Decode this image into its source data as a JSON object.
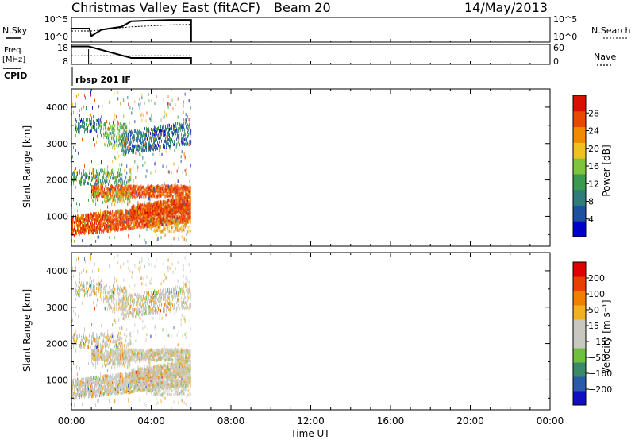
{
  "header": {
    "title": "Christmas Valley East (fitACF)",
    "beam": "Beam 20",
    "date": "14/May/2013"
  },
  "labels": {
    "nsky": "N.Sky",
    "nsearch": "N.Search",
    "freq_line1": "Freq.",
    "freq_line2": "[MHz]",
    "nave": "Nave",
    "cpid": "CPID",
    "cpid_value": "rbsp 201 IF"
  },
  "chart_data": [
    {
      "type": "line",
      "panel": "noise",
      "y_left_ticks": [
        "10^5",
        "10^0"
      ],
      "y_right_ticks": [
        "10^5",
        "10^0"
      ],
      "series": [
        {
          "name": "N.Sky",
          "x": [
            0,
            0.9,
            1.0,
            1.5,
            2.5,
            3.0,
            4.0,
            5.0,
            6.0
          ],
          "values": [
            0.55,
            0.55,
            0.25,
            0.5,
            0.62,
            0.85,
            0.88,
            0.9,
            0.9
          ]
        },
        {
          "name": "N.Search",
          "x": [
            0,
            1.0,
            2.0,
            3.0,
            4.0,
            5.0,
            6.0
          ],
          "values": [
            0.45,
            0.45,
            0.55,
            0.62,
            0.66,
            0.7,
            0.72
          ]
        }
      ]
    },
    {
      "type": "line",
      "panel": "frequency",
      "y_left_ticks": [
        "18",
        "8"
      ],
      "y_right_ticks": [
        "60",
        "0"
      ],
      "series": [
        {
          "name": "Freq.",
          "x": [
            0,
            0.85,
            0.86,
            3.0,
            3.01,
            6.0
          ],
          "values": [
            17,
            17,
            17,
            11.2,
            11.2,
            11.2
          ]
        },
        {
          "name": "Nave",
          "x": [
            0,
            6.0
          ],
          "values": [
            26,
            26
          ]
        }
      ]
    },
    {
      "type": "heatmap",
      "panel": "power",
      "ylabel": "Slant Range [km]",
      "ylim": [
        180,
        4500
      ],
      "yticks": [
        1000,
        2000,
        3000,
        4000
      ],
      "xlim": [
        0,
        24
      ],
      "colorbar": {
        "label": "Power [dB]",
        "ticks": [
          "28",
          "24",
          "20",
          "16",
          "12",
          "8",
          "4"
        ],
        "colors": [
          "#0000cc",
          "#1e50a0",
          "#2e7d7a",
          "#3a9b50",
          "#7ec43c",
          "#f0c020",
          "#f08a00",
          "#e84800",
          "#d81000"
        ]
      }
    },
    {
      "type": "heatmap",
      "panel": "velocity",
      "ylabel": "Slant Range [km]",
      "ylim": [
        180,
        4500
      ],
      "yticks": [
        1000,
        2000,
        3000,
        4000
      ],
      "xlim": [
        0,
        24
      ],
      "xticks": [
        "00:00",
        "04:00",
        "08:00",
        "12:00",
        "16:00",
        "20:00",
        "00:00"
      ],
      "xlabel": "Time UT",
      "colorbar": {
        "label": "Velocity [m s⁻¹]",
        "ticks": [
          "200",
          "100",
          "50",
          "15",
          "−15",
          "−50",
          "−100",
          "−200"
        ],
        "colors": [
          "#1010c0",
          "#2a5aa8",
          "#3a8a6a",
          "#70c040",
          "#c8c8c0",
          "#c8c8c0",
          "#f0b020",
          "#f08000",
          "#e84000",
          "#e00000"
        ]
      }
    }
  ]
}
